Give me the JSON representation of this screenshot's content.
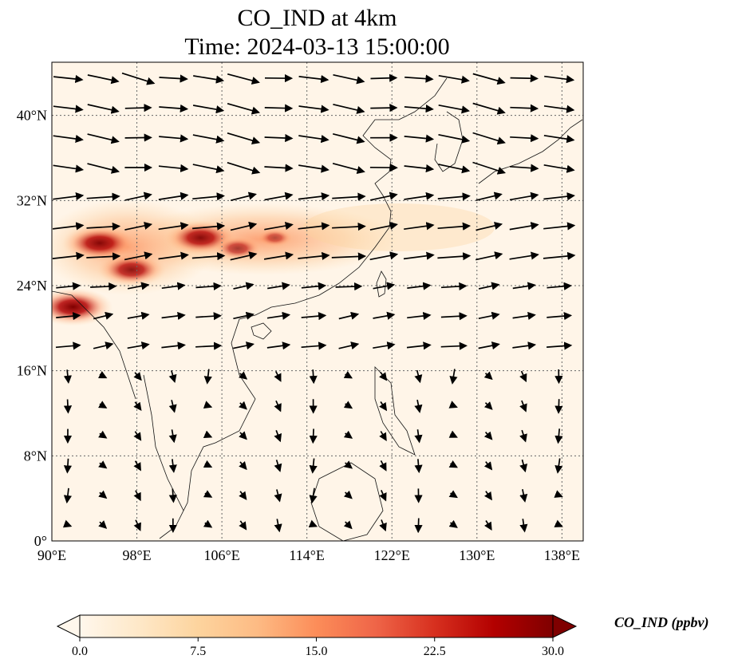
{
  "title": {
    "line1": "CO_IND at 4km",
    "line2": "Time: 2024-03-13 15:00:00"
  },
  "map": {
    "lon_range": [
      90,
      140
    ],
    "lat_range": [
      0,
      45
    ],
    "lon_ticks": [
      {
        "value": 90,
        "label": "90°E"
      },
      {
        "value": 98,
        "label": "98°E"
      },
      {
        "value": 106,
        "label": "106°E"
      },
      {
        "value": 114,
        "label": "114°E"
      },
      {
        "value": 122,
        "label": "122°E"
      },
      {
        "value": 130,
        "label": "130°E"
      },
      {
        "value": 138,
        "label": "138°E"
      }
    ],
    "lat_ticks": [
      {
        "value": 0,
        "label": "0°"
      },
      {
        "value": 8,
        "label": "8°N"
      },
      {
        "value": 16,
        "label": "16°N"
      },
      {
        "value": 24,
        "label": "24°N"
      },
      {
        "value": 32,
        "label": "32°N"
      },
      {
        "value": 40,
        "label": "40°N"
      }
    ],
    "gridlines": true,
    "hotspots": [
      {
        "lon": 94.5,
        "lat": 28.0,
        "value": 28
      },
      {
        "lon": 97.5,
        "lat": 25.5,
        "value": 25
      },
      {
        "lon": 92.0,
        "lat": 22.0,
        "value": 30
      },
      {
        "lon": 104.0,
        "lat": 28.5,
        "value": 27
      },
      {
        "lon": 107.5,
        "lat": 27.5,
        "value": 16
      },
      {
        "lon": 111.0,
        "lat": 28.5,
        "value": 10
      }
    ],
    "wind_flow": "westerly over 18°N–45°N, weak and variable south of 16°N"
  },
  "colorbar": {
    "label": "CO_IND (ppbv)",
    "min": 0.0,
    "max": 30.0,
    "ticks": [
      "0.0",
      "7.5",
      "15.0",
      "22.5",
      "30.0"
    ],
    "colormap": "OrRd",
    "colors": [
      "#fff7ec",
      "#fee8c8",
      "#fdd49e",
      "#fdbb84",
      "#fc8d59",
      "#ef6548",
      "#d7301f",
      "#b30000",
      "#7f0000"
    ]
  }
}
